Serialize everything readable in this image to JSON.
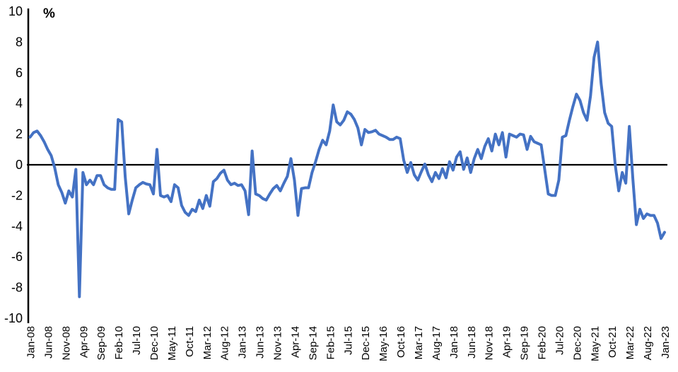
{
  "chart": {
    "unit_label": "%"
  },
  "chart_data": {
    "type": "line",
    "title": "",
    "xlabel": "",
    "ylabel": "%",
    "ylim": [
      -10,
      10
    ],
    "y_ticks": [
      10,
      8,
      6,
      4,
      2,
      0,
      -2,
      -4,
      -6,
      -8,
      -10
    ],
    "grid": false,
    "legend": false,
    "line_color": "#4472C4",
    "axis_color": "#000000",
    "x_start": "Jan-08",
    "x_end": "Jan-23",
    "frequency": "monthly",
    "x_tick_interval_months": 5,
    "x_tick_labels": [
      "Jan-08",
      "Jun-08",
      "Nov-08",
      "Apr-09",
      "Sep-09",
      "Feb-10",
      "Jul-10",
      "Dec-10",
      "May-11",
      "Oct-11",
      "Mar-12",
      "Aug-12",
      "Jan-13",
      "Jun-13",
      "Nov-13",
      "Apr-14",
      "Sep-14",
      "Feb-15",
      "Jul-15",
      "Dec-15",
      "May-16",
      "Oct-16",
      "Mar-17",
      "Aug-17",
      "Jan-18",
      "Jun-18",
      "Nov-18",
      "Apr-19",
      "Sep-19",
      "Feb-20",
      "Jul-20",
      "Dec-20",
      "May-21",
      "Oct-21",
      "Mar-22",
      "Aug-22",
      "Jan-23"
    ],
    "values": [
      1.8,
      2.1,
      2.2,
      1.9,
      1.5,
      1.0,
      0.6,
      -0.2,
      -1.3,
      -1.8,
      -2.5,
      -1.7,
      -2.1,
      -0.3,
      -8.6,
      -0.5,
      -1.3,
      -1.0,
      -1.3,
      -0.7,
      -0.7,
      -1.3,
      -1.5,
      -1.6,
      -1.6,
      2.95,
      2.8,
      -0.8,
      -3.2,
      -2.3,
      -1.5,
      -1.3,
      -1.15,
      -1.25,
      -1.3,
      -1.9,
      1.0,
      -2.0,
      -2.1,
      -2.0,
      -2.4,
      -1.3,
      -1.5,
      -2.65,
      -3.1,
      -3.3,
      -2.9,
      -3.05,
      -2.3,
      -2.85,
      -2.0,
      -2.7,
      -1.1,
      -0.9,
      -0.55,
      -0.35,
      -1.0,
      -1.3,
      -1.2,
      -1.35,
      -1.3,
      -1.7,
      -3.25,
      0.9,
      -1.9,
      -2.0,
      -2.2,
      -2.3,
      -1.9,
      -1.55,
      -1.35,
      -1.7,
      -1.2,
      -0.75,
      0.4,
      -1.0,
      -3.3,
      -1.55,
      -1.5,
      -1.5,
      -0.5,
      0.2,
      1.0,
      1.6,
      1.3,
      2.2,
      3.9,
      2.8,
      2.6,
      2.9,
      3.45,
      3.3,
      2.95,
      2.4,
      1.3,
      2.3,
      2.1,
      2.15,
      2.25,
      2.0,
      1.9,
      1.8,
      1.65,
      1.65,
      1.8,
      1.7,
      0.3,
      -0.5,
      0.15,
      -0.65,
      -1.0,
      -0.45,
      0.05,
      -0.65,
      -1.1,
      -0.5,
      -0.9,
      -0.25,
      -0.85,
      0.2,
      -0.35,
      0.5,
      0.85,
      -0.3,
      0.45,
      -0.5,
      0.4,
      1.0,
      0.4,
      1.2,
      1.7,
      0.9,
      2.0,
      1.3,
      2.1,
      0.5,
      2.0,
      1.9,
      1.8,
      2.0,
      1.95,
      1.0,
      1.85,
      1.5,
      1.4,
      1.3,
      -0.3,
      -1.9,
      -2.0,
      -2.0,
      -1.0,
      1.8,
      1.9,
      2.9,
      3.8,
      4.6,
      4.2,
      3.4,
      2.9,
      4.5,
      7.0,
      8.0,
      5.3,
      3.4,
      2.7,
      2.5,
      0.0,
      -1.7,
      -0.5,
      -1.2,
      2.5,
      -0.9,
      -3.9,
      -2.9,
      -3.5,
      -3.2,
      -3.3,
      -3.3,
      -3.8,
      -4.8,
      -4.4
    ]
  }
}
